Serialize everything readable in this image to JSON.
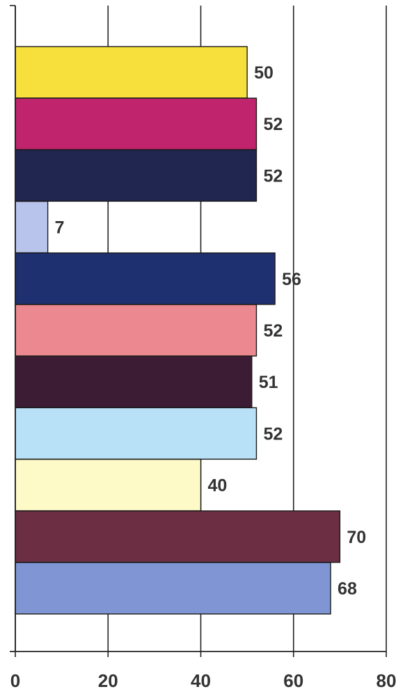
{
  "chart_data": {
    "type": "bar",
    "orientation": "horizontal",
    "values": [
      50,
      52,
      52,
      7,
      56,
      52,
      51,
      52,
      40,
      70,
      68
    ],
    "data_labels": [
      "50",
      "52",
      "52",
      "7",
      "56",
      "52",
      "51",
      "52",
      "40",
      "70",
      "68"
    ],
    "colors": [
      "#f7e03c",
      "#c0246c",
      "#202650",
      "#b8c4ec",
      "#1f3070",
      "#ec8890",
      "#3c1c34",
      "#b8e0f6",
      "#fdfac8",
      "#6c2e42",
      "#8096d4"
    ],
    "xlim": [
      0,
      80
    ],
    "x_ticks": [
      "0",
      "20",
      "40",
      "60",
      "80"
    ],
    "grid": "vertical",
    "title": "",
    "xlabel": "",
    "ylabel": ""
  }
}
